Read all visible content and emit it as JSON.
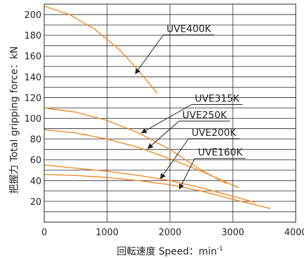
{
  "chart_data": {
    "type": "line",
    "title": "",
    "xlabel": "回転速度 Speed：min",
    "xlabel_superscript": "-1",
    "ylabel": "把握力  Total gripping force：kN",
    "xlim": [
      0,
      4000
    ],
    "ylim": [
      0,
      210
    ],
    "xticks": [
      0,
      1000,
      2000,
      3000,
      4000
    ],
    "yticks": [
      20,
      40,
      60,
      80,
      100,
      120,
      140,
      160,
      180,
      200
    ],
    "grid": true,
    "line_color": "#f08a24",
    "series": [
      {
        "name": "UVE400K",
        "x": [
          0,
          400,
          800,
          1200,
          1500,
          1800
        ],
        "y": [
          208,
          200,
          186,
          166,
          146,
          124
        ],
        "label_x": 2300,
        "label_y": 183,
        "arrow_tip_x": 1450,
        "arrow_tip_y": 143
      },
      {
        "name": "UVE315K",
        "x": [
          0,
          500,
          1000,
          1500,
          2000,
          2500,
          2900
        ],
        "y": [
          110,
          106,
          98,
          86,
          70,
          50,
          37
        ],
        "label_x": 2750,
        "label_y": 116,
        "arrow_tip_x": 1550,
        "arrow_tip_y": 86
      },
      {
        "name": "UVE250K",
        "x": [
          0,
          500,
          1000,
          1500,
          2000,
          2500,
          3100
        ],
        "y": [
          89,
          86,
          80,
          72,
          61,
          49,
          33
        ],
        "label_x": 2550,
        "label_y": 100,
        "arrow_tip_x": 1650,
        "arrow_tip_y": 71
      },
      {
        "name": "UVE200K",
        "x": [
          0,
          500,
          1000,
          1500,
          2000,
          2500,
          3000,
          3350
        ],
        "y": [
          55,
          52,
          49,
          45,
          40,
          33,
          25,
          19
        ],
        "label_x": 2700,
        "label_y": 83,
        "arrow_tip_x": 1850,
        "arrow_tip_y": 42
      },
      {
        "name": "UVE160K",
        "x": [
          0,
          500,
          1000,
          1500,
          2000,
          2500,
          3000,
          3600
        ],
        "y": [
          46,
          45,
          43,
          40,
          36,
          30,
          22,
          13
        ],
        "label_x": 2800,
        "label_y": 64,
        "arrow_tip_x": 2150,
        "arrow_tip_y": 32
      }
    ]
  }
}
